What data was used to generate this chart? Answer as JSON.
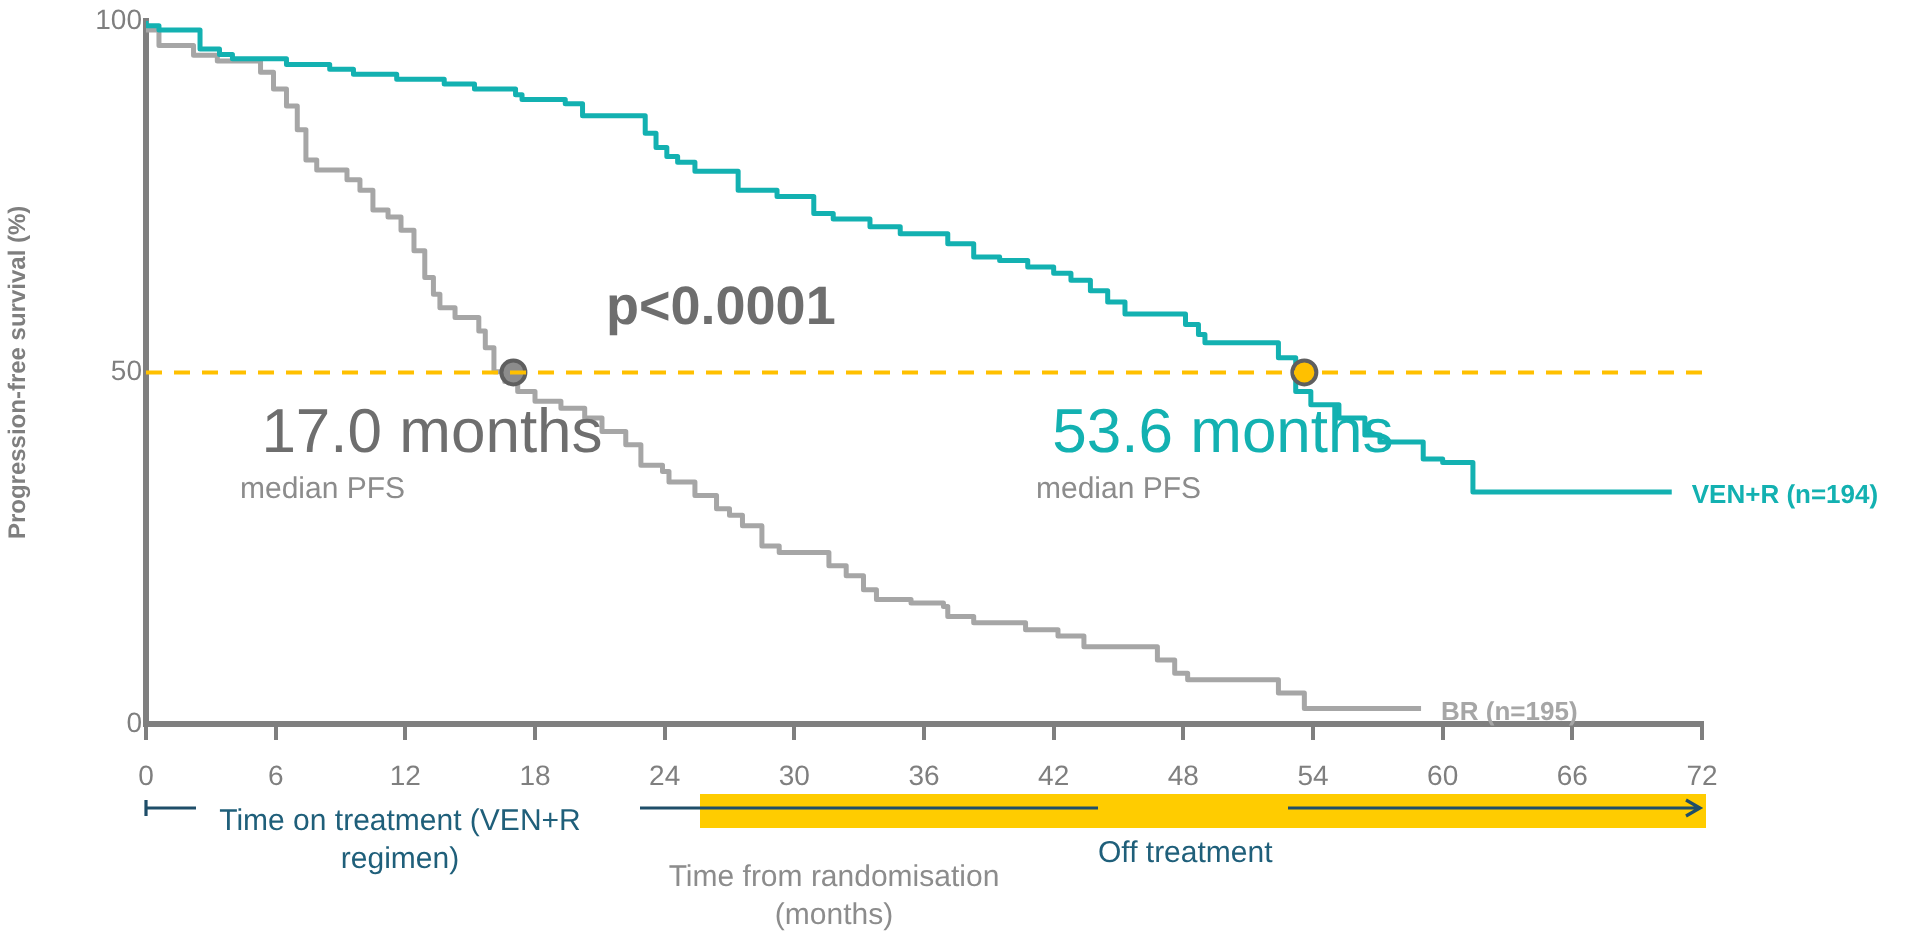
{
  "chart_data": {
    "type": "step",
    "xlabel": "Time from randomisation (months)",
    "ylabel": "Progression-free survival (%)",
    "xlim": [
      0,
      72
    ],
    "ylim": [
      0,
      100
    ],
    "xticks": [
      0,
      6,
      12,
      18,
      24,
      30,
      36,
      42,
      48,
      54,
      60,
      66,
      72
    ],
    "yticks": [
      0,
      50,
      100
    ],
    "grid": false,
    "legend": false,
    "marker": "none",
    "line_style": "solid",
    "ref_lines": [
      {
        "axis": "y",
        "value": 50,
        "color": "#ffc000",
        "line_style": "dashed"
      }
    ],
    "annotations": [
      "p<0.0001",
      {
        "text": "17.0 months",
        "x": 17.0,
        "y": 50
      },
      "median PFS",
      {
        "text": "53.6 months",
        "x": 53.6,
        "y": 50
      },
      "median PFS",
      "Time on treatment (VEN+R regimen)",
      "Off treatment"
    ],
    "series": [
      {
        "name": "VEN+R (n=194)",
        "color": "#13b1b1",
        "x": [
          0,
          0.6,
          2.5,
          3.4,
          4.0,
          6.5,
          8.5,
          9.6,
          11.6,
          13.8,
          15.2,
          17.1,
          17.4,
          19.4,
          20.2,
          23.1,
          23.6,
          24.1,
          24.6,
          25.4,
          27.4,
          29.2,
          30.9,
          31.8,
          33.5,
          34.9,
          37.1,
          38.3,
          39.5,
          40.8,
          42.0,
          42.8,
          43.7,
          44.5,
          45.3,
          48.1,
          48.7,
          49.0,
          52.4,
          53.2,
          53.9,
          55.2,
          56.4,
          57.1,
          59.1,
          60.0,
          61.4,
          64.7,
          70.6
        ],
        "values": [
          100,
          99.3,
          98.7,
          96.0,
          95.2,
          94.6,
          93.8,
          93.1,
          92.4,
          91.7,
          91.0,
          90.3,
          89.5,
          88.8,
          88.2,
          86.5,
          84.0,
          82.0,
          80.7,
          79.9,
          78.6,
          75.9,
          75.0,
          72.6,
          71.8,
          70.7,
          69.7,
          68.3,
          66.4,
          65.9,
          65.0,
          64.1,
          63.1,
          61.6,
          60.0,
          58.3,
          56.8,
          55.4,
          54.2,
          52.1,
          47.3,
          45.4,
          43.5,
          41.1,
          40.1,
          37.7,
          37.2,
          33.0,
          33.0
        ]
      },
      {
        "name": "BR (n=195)",
        "color": "#a6a6a6",
        "x": [
          0,
          0.6,
          2.2,
          3.3,
          5.3,
          5.9,
          6.5,
          7.0,
          7.4,
          7.9,
          9.3,
          9.9,
          10.5,
          11.2,
          11.8,
          12.4,
          12.9,
          13.3,
          13.6,
          14.3,
          15.4,
          15.7,
          16.1,
          16.6,
          17.2,
          18.0,
          19.2,
          20.3,
          21.1,
          22.2,
          22.9,
          23.9,
          24.2,
          25.4,
          26.4,
          27.0,
          27.6,
          28.5,
          29.3,
          31.6,
          32.4,
          33.2,
          33.8,
          35.4,
          36.9,
          37.1,
          38.3,
          40.7,
          42.2,
          43.4,
          46.8,
          47.6,
          48.2,
          52.4,
          53.6,
          54.2,
          59.0
        ],
        "values": [
          100,
          98.7,
          96.5,
          95.1,
          94.3,
          92.7,
          90.3,
          87.9,
          84.5,
          80.2,
          78.8,
          77.4,
          75.9,
          73.1,
          72.1,
          70.2,
          67.3,
          63.5,
          61.1,
          59.2,
          57.8,
          55.9,
          53.5,
          50.1,
          48.7,
          47.3,
          45.9,
          44.9,
          43.5,
          41.6,
          39.7,
          36.8,
          35.9,
          34.4,
          32.5,
          30.6,
          29.7,
          28.2,
          25.3,
          24.4,
          22.5,
          21.1,
          19.1,
          17.7,
          17.2,
          16.7,
          15.3,
          14.4,
          13.4,
          12.5,
          11.0,
          9.1,
          7.2,
          6.3,
          4.4,
          2.2,
          2.2
        ]
      },
      {
        "type": "scatter",
        "marker": "circle",
        "color": "#8c8c8c",
        "x": [
          17.0
        ],
        "values": [
          50
        ]
      },
      {
        "type": "scatter",
        "marker": "circle",
        "color": "#ffc000",
        "x": [
          53.6
        ],
        "values": [
          50
        ]
      }
    ]
  }
}
